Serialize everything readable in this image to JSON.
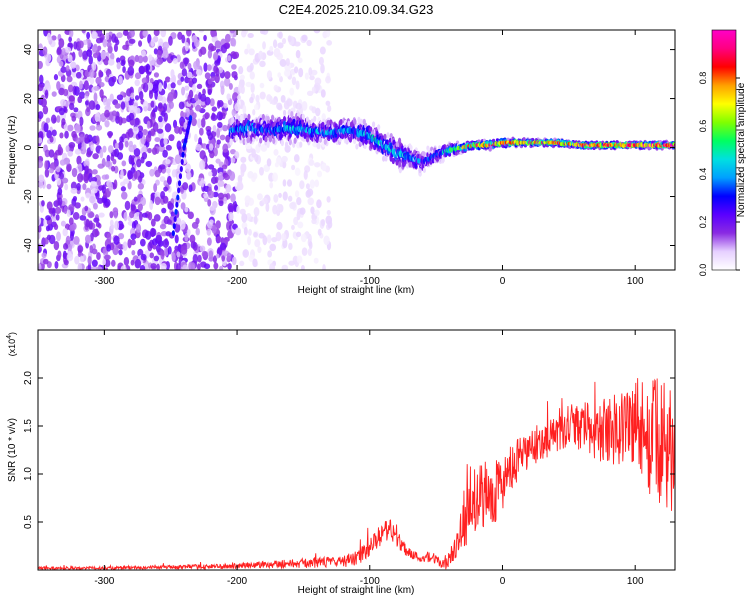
{
  "title": "C2E4.2025.210.09.34.G23",
  "chart_data": [
    {
      "type": "heatmap",
      "xlabel": "Height of straight line (km)",
      "ylabel": "Frequency (Hz)",
      "xlim": [
        -350,
        130
      ],
      "ylim": [
        -50,
        48
      ],
      "xticks": [
        -300,
        -200,
        -100,
        0,
        100
      ],
      "yticks": [
        -40,
        -20,
        0,
        20,
        40
      ],
      "colorbar": {
        "label": "Normalized spectral amplitude",
        "range": [
          0,
          1
        ],
        "ticks": [
          "0.0",
          "0.2",
          "0.4",
          "0.6",
          "0.8"
        ],
        "colors": [
          "#ffffff",
          "#e6d0ff",
          "#8a2be2",
          "#5a00ff",
          "#0000ff",
          "#00a0ff",
          "#00e0e0",
          "#00ff60",
          "#80ff00",
          "#ffff00",
          "#ffa000",
          "#ff0000",
          "#ff0080",
          "#ff00c8"
        ]
      },
      "regions": [
        {
          "name": "noise",
          "x_range": [
            -350,
            -200
          ],
          "y_range": [
            -50,
            48
          ],
          "amplitude": 0.15
        },
        {
          "name": "sparse noise",
          "x_range": [
            -200,
            -130
          ],
          "y_range": [
            -50,
            48
          ],
          "amplitude": 0.05
        },
        {
          "name": "diagonal streak",
          "points": [
            [
              -248,
              -35
            ],
            [
              -240,
              0
            ],
            [
              -235,
              12
            ]
          ],
          "amplitude": 0.25
        }
      ],
      "signal": {
        "x": [
          -205,
          -190,
          -175,
          -160,
          -145,
          -130,
          -115,
          -100,
          -90,
          -80,
          -70,
          -60,
          -50,
          -40,
          -30,
          -20,
          -10,
          0,
          20,
          40,
          60,
          80,
          100,
          130
        ],
        "center_freq": [
          7,
          8,
          7,
          8,
          7,
          6,
          7,
          5,
          1,
          -2,
          -4,
          -6,
          -3,
          -1,
          0,
          1,
          1,
          2,
          2,
          2,
          1,
          1,
          1,
          1
        ],
        "half_width": [
          6,
          7,
          6,
          7,
          6,
          6,
          6,
          6,
          6,
          7,
          6,
          5,
          4,
          3,
          2,
          2,
          2,
          2,
          1.5,
          1.5,
          1.5,
          1.5,
          1.5,
          1.5
        ],
        "peak_amplitude": [
          0.35,
          0.4,
          0.38,
          0.42,
          0.4,
          0.4,
          0.38,
          0.45,
          0.5,
          0.45,
          0.4,
          0.35,
          0.35,
          0.5,
          0.7,
          0.8,
          0.85,
          0.8,
          0.85,
          0.85,
          0.85,
          0.9,
          0.9,
          0.95
        ]
      }
    },
    {
      "type": "line",
      "xlabel": "Height of straight line (km)",
      "ylabel": "SNR (10 * v/v)",
      "y_scale_label": "(x10",
      "y_scale_exp": "4",
      "xlim": [
        -350,
        130
      ],
      "ylim": [
        0,
        2.5
      ],
      "xticks": [
        -300,
        -200,
        -100,
        0,
        100
      ],
      "yticks": [
        "0.5",
        "1.0",
        "1.5",
        "2.0"
      ],
      "ytick_values": [
        0.5,
        1.0,
        1.5,
        2.0
      ],
      "series": [
        {
          "color": "#ff2020",
          "x": [
            -350,
            -300,
            -250,
            -200,
            -180,
            -150,
            -120,
            -110,
            -100,
            -95,
            -90,
            -85,
            -80,
            -75,
            -70,
            -65,
            -60,
            -55,
            -50,
            -45,
            -40,
            -35,
            -30,
            -25,
            -20,
            -15,
            -10,
            -5,
            0,
            10,
            20,
            30,
            40,
            50,
            60,
            70,
            80,
            90,
            100,
            110,
            120,
            130
          ],
          "y": [
            0.02,
            0.02,
            0.03,
            0.04,
            0.06,
            0.07,
            0.09,
            0.12,
            0.22,
            0.32,
            0.38,
            0.42,
            0.33,
            0.25,
            0.18,
            0.14,
            0.12,
            0.16,
            0.1,
            0.06,
            0.1,
            0.2,
            0.45,
            0.6,
            0.75,
            0.8,
            0.75,
            0.85,
            0.9,
            1.1,
            1.25,
            1.35,
            1.4,
            1.45,
            1.5,
            1.45,
            1.45,
            1.5,
            1.55,
            1.4,
            1.3,
            1.2
          ],
          "spread": [
            0.015,
            0.015,
            0.02,
            0.03,
            0.04,
            0.05,
            0.06,
            0.08,
            0.1,
            0.1,
            0.12,
            0.12,
            0.1,
            0.08,
            0.06,
            0.05,
            0.04,
            0.08,
            0.05,
            0.06,
            0.12,
            0.15,
            0.25,
            0.3,
            0.35,
            0.35,
            0.35,
            0.35,
            0.3,
            0.25,
            0.2,
            0.2,
            0.2,
            0.2,
            0.25,
            0.3,
            0.35,
            0.45,
            0.5,
            0.6,
            0.7,
            0.6
          ]
        }
      ]
    }
  ]
}
